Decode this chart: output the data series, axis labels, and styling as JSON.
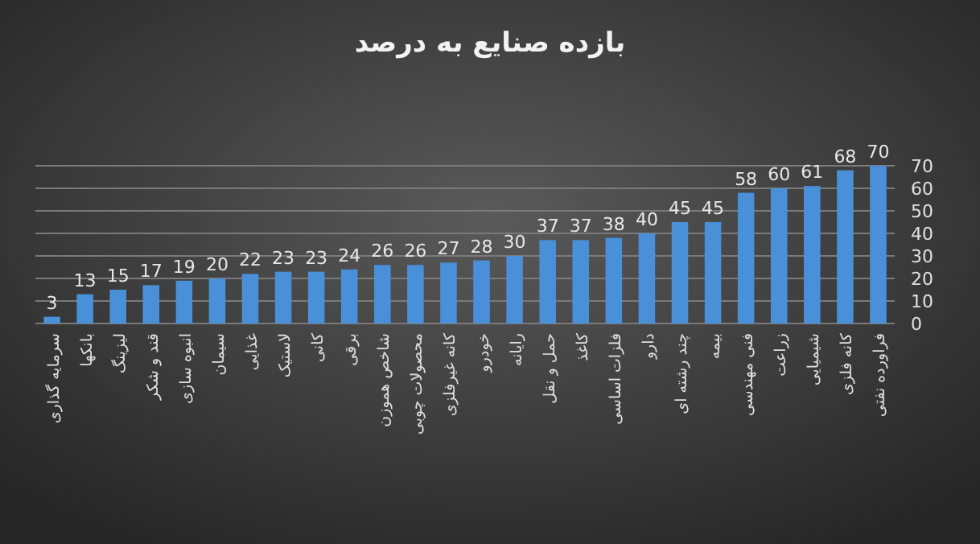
{
  "chart_data": {
    "type": "bar",
    "title": "بازده صنایع به درصد",
    "categories": [
      "سرمایه گذاری",
      "بانکها",
      "لیزینگ",
      "قند و شکر",
      "انبوه سازی",
      "سیمان",
      "غذایی",
      "لاستیک",
      "کانی",
      "برقی",
      "شاخص هموزن",
      "محصولات چوبی",
      "کانه غیرفلزی",
      "خودرو",
      "رایانه",
      "حمل و نقل",
      "کاغذ",
      "فلزات اساسی",
      "دارو",
      "چند رشته ای",
      "بیمه",
      "فنی مهندسی",
      "زراعت",
      "شیمیایی",
      "کانه فلزی",
      "فراورده نفتی"
    ],
    "values": [
      3,
      13,
      15,
      17,
      19,
      20,
      22,
      23,
      23,
      24,
      26,
      26,
      27,
      28,
      30,
      37,
      37,
      38,
      40,
      45,
      45,
      58,
      60,
      61,
      68,
      70
    ],
    "color": "#4a90d9",
    "ylim": [
      0,
      70
    ],
    "yticks": [
      0,
      10,
      20,
      30,
      40,
      50,
      60,
      70
    ],
    "grid": "y",
    "data_labels": true
  }
}
